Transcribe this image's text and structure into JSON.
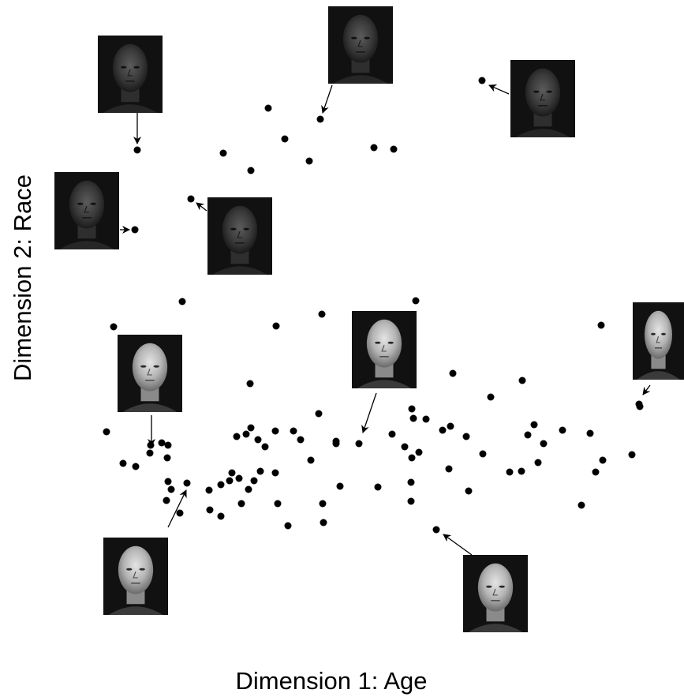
{
  "chart_data": {
    "type": "scatter",
    "title": "",
    "xlabel": "Dimension 1: Age",
    "ylabel": "Dimension 2: Race",
    "grid": false,
    "legend": "none",
    "point_color": "#000000",
    "points": [
      [
        174,
        190
      ],
      [
        171,
        291
      ],
      [
        340,
        137
      ],
      [
        406,
        151
      ],
      [
        361,
        176
      ],
      [
        392,
        204
      ],
      [
        283,
        194
      ],
      [
        318,
        216
      ],
      [
        474,
        187
      ],
      [
        499,
        189
      ],
      [
        611,
        102
      ],
      [
        242,
        252
      ],
      [
        231,
        382
      ],
      [
        144,
        414
      ],
      [
        350,
        413
      ],
      [
        408,
        398
      ],
      [
        527,
        381
      ],
      [
        762,
        412
      ],
      [
        317,
        486
      ],
      [
        135,
        547
      ],
      [
        191,
        564
      ],
      [
        190,
        574
      ],
      [
        205,
        561
      ],
      [
        213,
        564
      ],
      [
        212,
        580
      ],
      [
        156,
        587
      ],
      [
        172,
        591
      ],
      [
        213,
        610
      ],
      [
        237,
        612
      ],
      [
        217,
        620
      ],
      [
        211,
        634
      ],
      [
        228,
        650
      ],
      [
        300,
        553
      ],
      [
        312,
        550
      ],
      [
        318,
        542
      ],
      [
        327,
        557
      ],
      [
        336,
        566
      ],
      [
        349,
        546
      ],
      [
        372,
        546
      ],
      [
        381,
        557
      ],
      [
        404,
        524
      ],
      [
        394,
        583
      ],
      [
        426,
        559
      ],
      [
        426,
        562
      ],
      [
        455,
        562
      ],
      [
        265,
        621
      ],
      [
        280,
        614
      ],
      [
        291,
        609
      ],
      [
        294,
        599
      ],
      [
        303,
        606
      ],
      [
        315,
        620
      ],
      [
        322,
        609
      ],
      [
        330,
        597
      ],
      [
        349,
        599
      ],
      [
        266,
        646
      ],
      [
        280,
        654
      ],
      [
        306,
        638
      ],
      [
        352,
        638
      ],
      [
        365,
        666
      ],
      [
        409,
        638
      ],
      [
        410,
        662
      ],
      [
        431,
        616
      ],
      [
        479,
        617
      ],
      [
        497,
        550
      ],
      [
        513,
        566
      ],
      [
        522,
        518
      ],
      [
        524,
        530
      ],
      [
        540,
        531
      ],
      [
        531,
        573
      ],
      [
        522,
        580
      ],
      [
        521,
        611
      ],
      [
        521,
        635
      ],
      [
        553,
        671
      ],
      [
        561,
        545
      ],
      [
        571,
        540
      ],
      [
        574,
        473
      ],
      [
        591,
        553
      ],
      [
        569,
        594
      ],
      [
        594,
        622
      ],
      [
        612,
        575
      ],
      [
        622,
        503
      ],
      [
        646,
        598
      ],
      [
        661,
        597
      ],
      [
        662,
        482
      ],
      [
        669,
        551
      ],
      [
        677,
        538
      ],
      [
        689,
        562
      ],
      [
        682,
        586
      ],
      [
        713,
        545
      ],
      [
        748,
        549
      ],
      [
        755,
        598
      ],
      [
        764,
        583
      ],
      [
        737,
        640
      ],
      [
        801,
        576
      ],
      [
        810,
        512
      ],
      [
        811,
        515
      ]
    ],
    "annotations": [
      {
        "name": "face-dark-young-man",
        "img": [
          124,
          45,
          82,
          98
        ],
        "arrow": [
          174,
          143,
          174,
          182
        ],
        "tone": "dark"
      },
      {
        "name": "face-dark-middle-aged-man",
        "img": [
          416,
          8,
          82,
          98
        ],
        "arrow": [
          421,
          108,
          409,
          143
        ],
        "tone": "dark"
      },
      {
        "name": "face-dark-older-man",
        "img": [
          647,
          76,
          82,
          98
        ],
        "arrow": [
          645,
          119,
          620,
          108
        ],
        "tone": "dark"
      },
      {
        "name": "face-dark-man-left",
        "img": [
          69,
          218,
          82,
          98
        ],
        "arrow": [
          152,
          291,
          164,
          291
        ],
        "tone": "dark"
      },
      {
        "name": "face-dark-bald-man",
        "img": [
          263,
          250,
          82,
          98
        ],
        "arrow": [
          262,
          267,
          249,
          257
        ],
        "tone": "dark"
      },
      {
        "name": "face-light-man-mustache",
        "img": [
          446,
          394,
          82,
          98
        ],
        "arrow": [
          477,
          498,
          460,
          548
        ],
        "tone": "light"
      },
      {
        "name": "face-light-older-man-right",
        "img": [
          802,
          383,
          65,
          98
        ],
        "arrow": [
          824,
          488,
          815,
          500
        ],
        "tone": "light"
      },
      {
        "name": "face-light-young-man",
        "img": [
          149,
          424,
          82,
          98
        ],
        "arrow": [
          192,
          526,
          192,
          565
        ],
        "tone": "light"
      },
      {
        "name": "face-light-young-man-lower",
        "img": [
          131,
          681,
          82,
          98
        ],
        "arrow": [
          213,
          668,
          236,
          621
        ],
        "tone": "light"
      },
      {
        "name": "face-light-older-man-lower",
        "img": [
          587,
          703,
          82,
          98
        ],
        "arrow": [
          598,
          703,
          562,
          677
        ],
        "tone": "light"
      }
    ]
  }
}
